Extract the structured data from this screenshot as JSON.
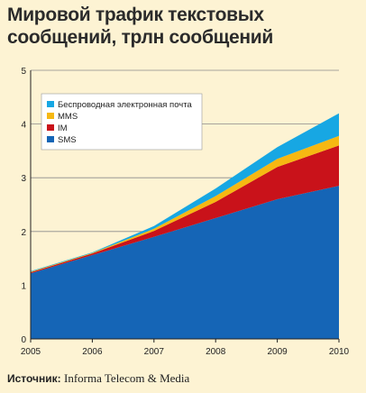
{
  "chart_data": {
    "type": "area",
    "stacked": true,
    "title": "Мировой трафик текстовых сообщений, трлн сообщений",
    "x": [
      "2005",
      "2006",
      "2007",
      "2008",
      "2009",
      "2010"
    ],
    "ylim": [
      0,
      5
    ],
    "yticks": [
      "0",
      "1",
      "2",
      "3",
      "4",
      "5"
    ],
    "grid": true,
    "legend_position": "top-left",
    "series": [
      {
        "name": "SMS",
        "color": "#1565b6",
        "values": [
          1.22,
          1.56,
          1.9,
          2.25,
          2.6,
          2.85
        ]
      },
      {
        "name": "IM",
        "color": "#c9121a",
        "values": [
          0.02,
          0.03,
          0.11,
          0.3,
          0.6,
          0.75
        ]
      },
      {
        "name": "MMS",
        "color": "#f6b812",
        "values": [
          0.01,
          0.01,
          0.04,
          0.11,
          0.15,
          0.18
        ]
      },
      {
        "name": "Беспроводная электронная почта",
        "color": "#17a7e3",
        "values": [
          0.01,
          0.01,
          0.05,
          0.14,
          0.22,
          0.42
        ]
      }
    ],
    "legend_order": [
      "Беспроводная электронная почта",
      "MMS",
      "IM",
      "SMS"
    ]
  },
  "footer": {
    "label": "Источник:",
    "source": "Informa Telecom & Media"
  }
}
